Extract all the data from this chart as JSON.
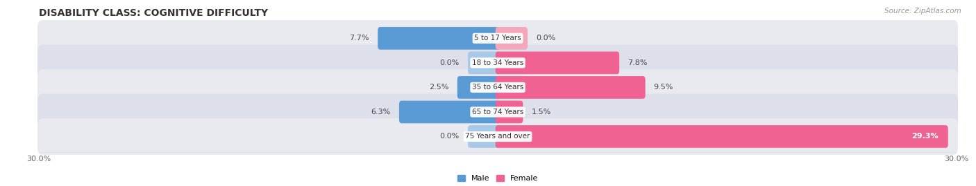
{
  "title": "DISABILITY CLASS: COGNITIVE DIFFICULTY",
  "source": "Source: ZipAtlas.com",
  "categories": [
    "5 to 17 Years",
    "18 to 34 Years",
    "35 to 64 Years",
    "65 to 74 Years",
    "75 Years and over"
  ],
  "male_values": [
    7.7,
    0.0,
    2.5,
    6.3,
    0.0
  ],
  "female_values": [
    0.0,
    7.8,
    9.5,
    1.5,
    29.3
  ],
  "x_max": 30.0,
  "x_min": -30.0,
  "male_color_dark": "#5b9bd5",
  "male_color_light": "#a8c8e8",
  "female_color_dark": "#f06292",
  "female_color_light": "#f4a7bb",
  "row_bg_color": "#e8eaf0",
  "row_bg_color2": "#dde0ea",
  "title_fontsize": 10,
  "tick_fontsize": 8,
  "label_fontsize": 8,
  "category_fontsize": 7.5,
  "legend_fontsize": 8,
  "source_fontsize": 7.5
}
